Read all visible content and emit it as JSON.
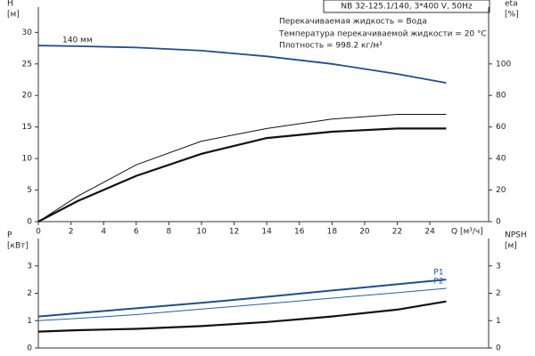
{
  "chart_data": [
    {
      "type": "line",
      "title": "NB 32-125.1/140, 3*400 V, 50Hz",
      "annotations": [
        "140 мм",
        "Перекачиваемая жидкость = Вода",
        "Температура перекачиваемой жидкости = 20 °C",
        "Плотность = 998.2 кг/м³"
      ],
      "ylabel": [
        "H",
        "[м]"
      ],
      "y2label": [
        "eta",
        "[%]"
      ],
      "xlabel": "Q [м³/ч]",
      "x": [
        0,
        2.4,
        6,
        10,
        14,
        18,
        22,
        25
      ],
      "xlim": [
        0,
        27.6
      ],
      "xticks": [
        0,
        2,
        4,
        6,
        8,
        10,
        12,
        14,
        16,
        18,
        20,
        22,
        24
      ],
      "ylim": [
        0,
        34
      ],
      "yticks": [
        0,
        5,
        10,
        15,
        20,
        25,
        30
      ],
      "y2lim": [
        0,
        136
      ],
      "y2ticks": [
        0,
        20,
        40,
        60,
        80,
        100
      ],
      "series": [
        {
          "color": "#1f4e8c",
          "values": [
            27.9,
            27.8,
            27.6,
            27.1,
            26.2,
            25.0,
            23.4,
            22.0
          ]
        },
        {
          "color": "#111111",
          "axis": "y2",
          "values": [
            0,
            16,
            36,
            51,
            59,
            65,
            68,
            68
          ]
        },
        {
          "color": "#111111",
          "axis": "y2",
          "values": [
            0,
            13,
            29,
            43,
            53,
            57,
            59,
            59
          ]
        }
      ]
    },
    {
      "type": "line",
      "ylabel": [
        "P",
        "[кВт]"
      ],
      "y2label": [
        "NPSH",
        "[м]"
      ],
      "x": [
        0,
        2.4,
        6,
        10,
        14,
        18,
        22,
        25
      ],
      "xlim": [
        0,
        27.6
      ],
      "ylim": [
        0,
        4
      ],
      "yticks": [
        0,
        1,
        2,
        3
      ],
      "y2lim": [
        0,
        4
      ],
      "y2ticks": [
        0,
        1,
        2,
        3
      ],
      "series": [
        {
          "name": "P1",
          "color": "#1f4e8c",
          "values": [
            1.15,
            1.27,
            1.45,
            1.65,
            1.87,
            2.1,
            2.33,
            2.5
          ]
        },
        {
          "name": "P2",
          "color": "#2a5d9c",
          "values": [
            1.0,
            1.08,
            1.22,
            1.42,
            1.62,
            1.82,
            2.02,
            2.18
          ]
        },
        {
          "color": "#111111",
          "axis": "y2",
          "values": [
            0.6,
            0.65,
            0.7,
            0.8,
            0.95,
            1.15,
            1.4,
            1.7
          ]
        }
      ]
    }
  ]
}
